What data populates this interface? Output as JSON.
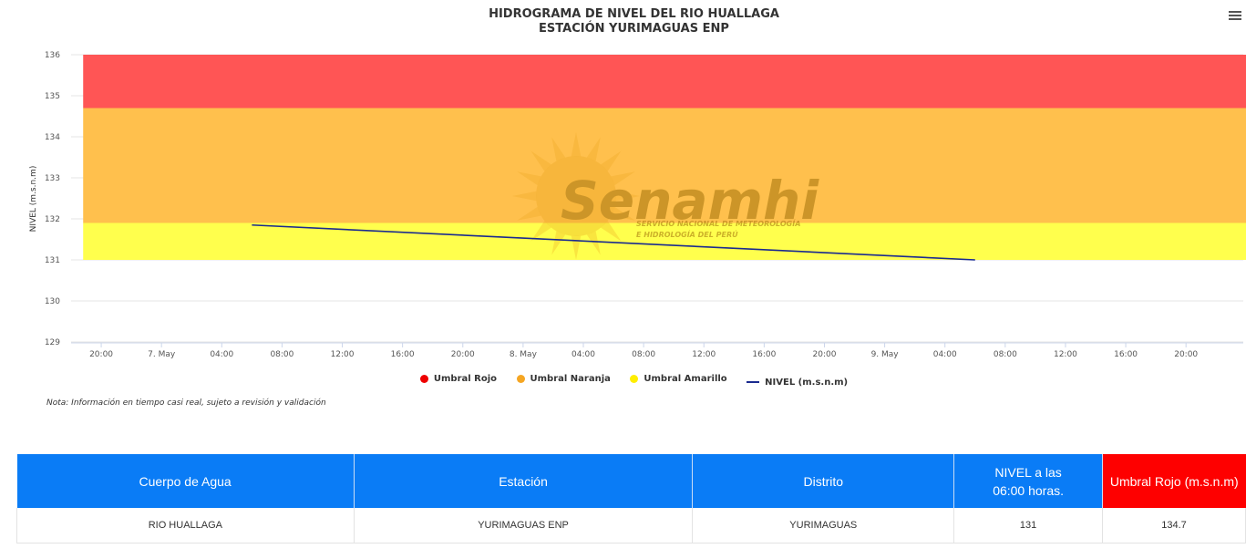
{
  "chart_data": {
    "type": "line",
    "title": [
      "HIDROGRAMA DE NIVEL DEL RIO HUALLAGA",
      "ESTACIÓN YURIMAGUAS ENP"
    ],
    "ylabel": "NIVEL (m.s.n.m)",
    "xlabel": "",
    "ylim": [
      129,
      136
    ],
    "y_ticks": [
      "129",
      "130",
      "131",
      "132",
      "133",
      "134",
      "135",
      "136"
    ],
    "x_ticks": [
      {
        "t": 20,
        "label": "20:00"
      },
      {
        "t": 24,
        "label": "7. May"
      },
      {
        "t": 28,
        "label": "04:00"
      },
      {
        "t": 32,
        "label": "08:00"
      },
      {
        "t": 36,
        "label": "12:00"
      },
      {
        "t": 40,
        "label": "16:00"
      },
      {
        "t": 44,
        "label": "20:00"
      },
      {
        "t": 48,
        "label": "8. May"
      },
      {
        "t": 52,
        "label": "04:00"
      },
      {
        "t": 56,
        "label": "08:00"
      },
      {
        "t": 60,
        "label": "12:00"
      },
      {
        "t": 64,
        "label": "16:00"
      },
      {
        "t": 68,
        "label": "20:00"
      },
      {
        "t": 72,
        "label": "9. May"
      },
      {
        "t": 76,
        "label": "04:00"
      },
      {
        "t": 80,
        "label": "08:00"
      },
      {
        "t": 84,
        "label": "12:00"
      },
      {
        "t": 88,
        "label": "16:00"
      },
      {
        "t": 92,
        "label": "20:00"
      }
    ],
    "xlim": [
      18,
      95.8
    ],
    "bands": [
      {
        "name": "Umbral Amarillo",
        "from": 131,
        "to": 131.9,
        "color": "#ffff4d"
      },
      {
        "name": "Umbral Naranja",
        "from": 131.9,
        "to": 134.7,
        "color": "#ffc04d"
      },
      {
        "name": "Umbral Rojo",
        "from": 134.7,
        "to": 136,
        "color": "#ff5555"
      }
    ],
    "band_extent": [
      18.8,
      96.2
    ],
    "series": [
      {
        "name": "NIVEL (m.s.n.m)",
        "color": "#1a2a8f",
        "points": [
          [
            30,
            131.85
          ],
          [
            78,
            131.0
          ]
        ]
      }
    ],
    "legend": [
      {
        "name": "Umbral Rojo",
        "color": "#ee0000",
        "kind": "dot"
      },
      {
        "name": "Umbral Naranja",
        "color": "#f5a623",
        "kind": "dot"
      },
      {
        "name": "Umbral Amarillo",
        "color": "#ffee00",
        "kind": "dot"
      },
      {
        "name": "NIVEL (m.s.n.m)",
        "color": "#1a2a8f",
        "kind": "line"
      }
    ],
    "legend_position": "bottom",
    "grid": true
  },
  "watermark": {
    "brand": "Senamhi",
    "subline1": "SERVICIO NACIONAL DE METEOROLOGÍA",
    "subline2": "E HIDROLOGÍA DEL PERÚ"
  },
  "note": "Nota: Información en tiempo casi real, sujeto a revisión y validación",
  "table": {
    "headers": [
      "Cuerpo de Agua",
      "Estación",
      "Distrito",
      "NIVEL a las 06:00 horas.",
      "Umbral Rojo (m.s.n.m)"
    ],
    "header_line1": "NIVEL a las",
    "header_line2": "06:00 horas.",
    "row": [
      "RIO HUALLAGA",
      "YURIMAGUAS ENP",
      "YURIMAGUAS",
      "131",
      "134.7"
    ]
  },
  "menu_icon": "hamburger-icon",
  "colors": {
    "header_blue": "#0a7cf6",
    "header_red": "#fe0000"
  }
}
